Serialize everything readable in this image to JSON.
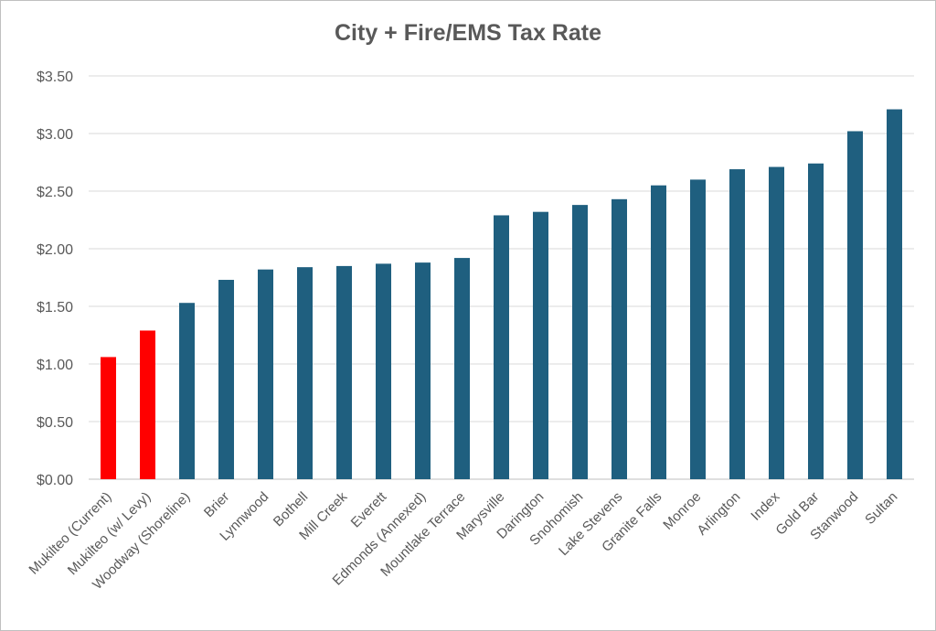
{
  "chart_data": {
    "type": "bar",
    "title": "City + Fire/EMS Tax Rate",
    "xlabel": "",
    "ylabel": "",
    "ylim": [
      0,
      3.5
    ],
    "yticks": [
      "$0.00",
      "$0.50",
      "$1.00",
      "$1.50",
      "$2.00",
      "$2.50",
      "$3.00",
      "$3.50"
    ],
    "ytick_values": [
      0,
      0.5,
      1.0,
      1.5,
      2.0,
      2.5,
      3.0,
      3.5
    ],
    "grid": true,
    "legend": "none",
    "categories": [
      "Mukilteo (Current)",
      "Mukilteo (w/ Levy)",
      "Woodway (Shoreline)",
      "Brier",
      "Lynnwood",
      "Bothell",
      "Mill Creek",
      "Everett",
      "Edmonds (Annexed)",
      "Mountlake Terrace",
      "Marysville",
      "Darington",
      "Snohomish",
      "Lake Stevens",
      "Granite Falls",
      "Monroe",
      "Arlington",
      "Index",
      "Gold Bar",
      "Stanwood",
      "Sultan"
    ],
    "values": [
      1.06,
      1.29,
      1.53,
      1.73,
      1.82,
      1.84,
      1.85,
      1.87,
      1.88,
      1.92,
      2.29,
      2.32,
      2.38,
      2.43,
      2.55,
      2.6,
      2.69,
      2.71,
      2.74,
      3.02,
      3.21
    ],
    "colors": {
      "highlight": "#ff0000",
      "default": "#1f5f7f",
      "gridline": "#d9d9d9",
      "axis": "#bfbfbf",
      "text": "#595959"
    },
    "highlight_indices": [
      0,
      1
    ]
  }
}
